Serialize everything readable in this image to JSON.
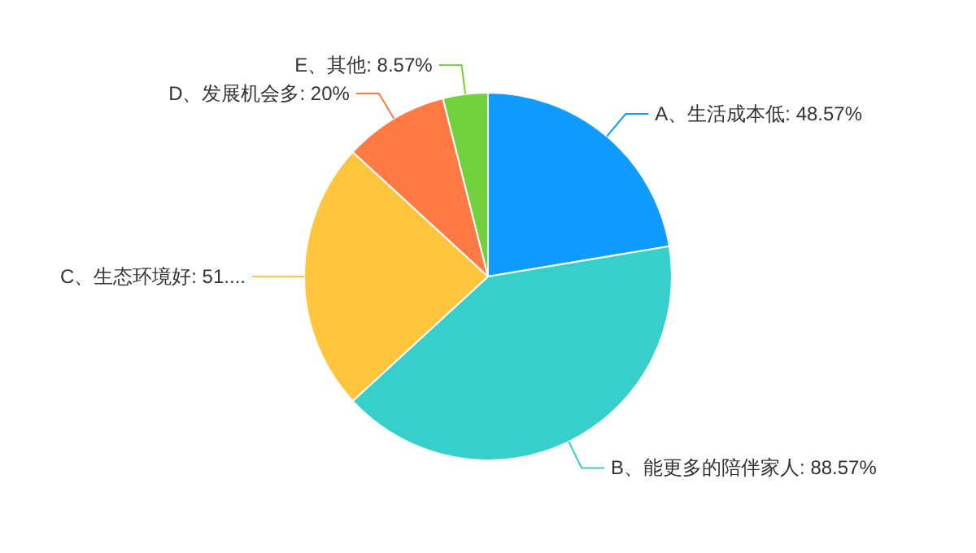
{
  "chart_data": {
    "type": "pie",
    "categories": [
      "A、生活成本低",
      "B、能更多的陪伴家人",
      "C、生态环境好",
      "D、发展机会多",
      "E、其他"
    ],
    "values": [
      48.57,
      88.57,
      51.43,
      20,
      8.57
    ],
    "value_labels": [
      "48.57%",
      "88.57%",
      "51....",
      "20%",
      "8.57%"
    ],
    "colors": [
      "#0f9bff",
      "#36cfc9",
      "#ffc53d",
      "#ff7a45",
      "#73d13d"
    ]
  }
}
